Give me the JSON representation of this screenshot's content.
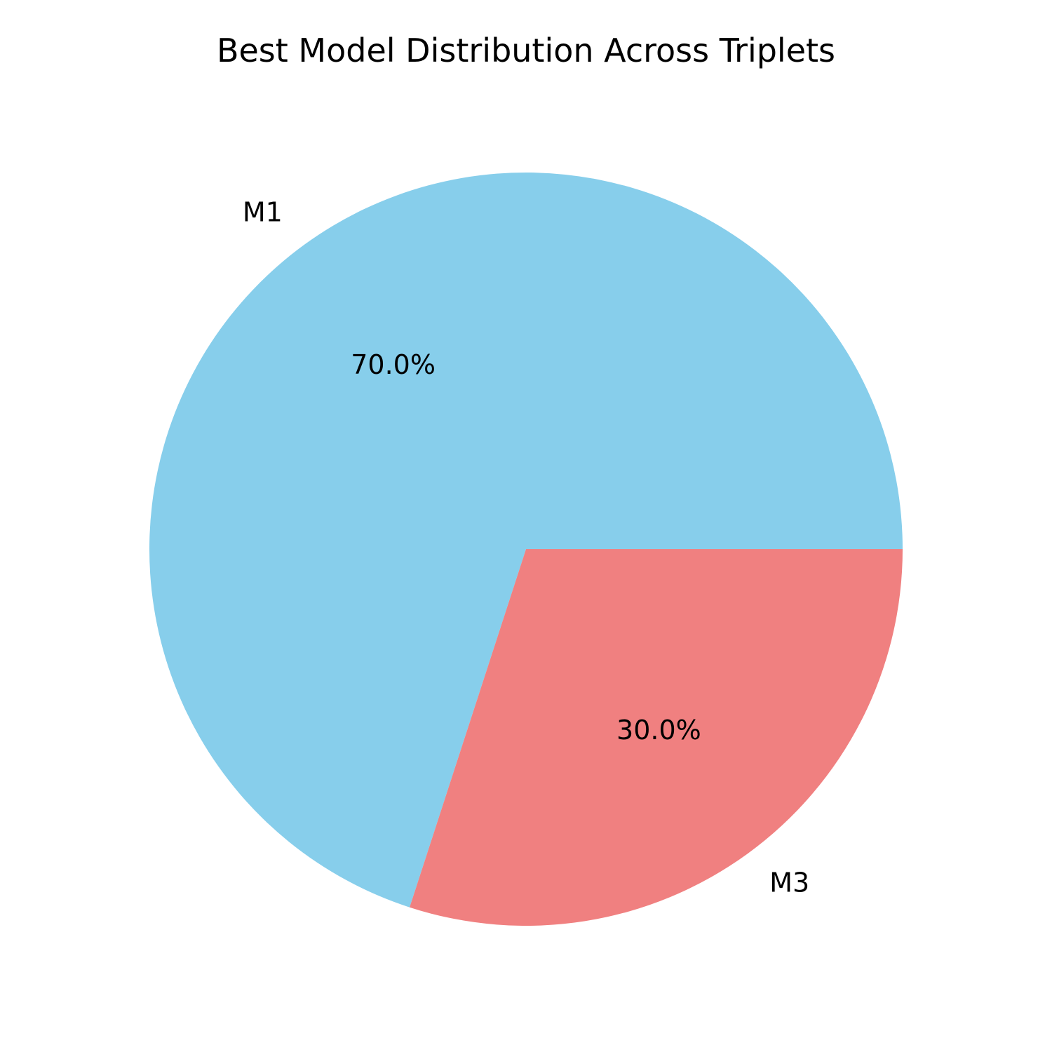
{
  "chart_data": {
    "type": "pie",
    "title": "Best Model Distribution Across Triplets",
    "categories": [
      "M1",
      "M3"
    ],
    "values": [
      70.0,
      30.0
    ],
    "percent_labels": [
      "70.0%",
      "30.0%"
    ],
    "colors": [
      "#87CEEB",
      "#F08080"
    ],
    "start_angle_deg": 0,
    "direction": "counterclockwise",
    "legend": "none"
  }
}
